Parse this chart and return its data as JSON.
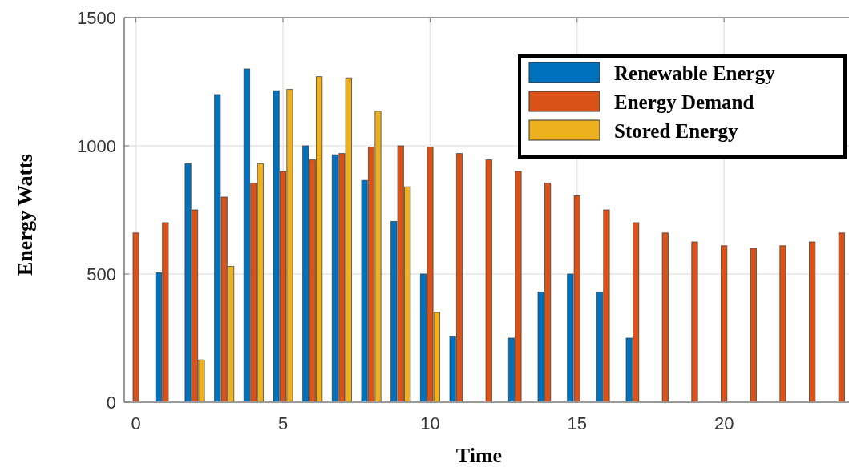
{
  "chart_data": {
    "type": "bar",
    "xlabel": "Time",
    "ylabel": "Energy Watts",
    "x": [
      0,
      1,
      2,
      3,
      4,
      5,
      6,
      7,
      8,
      9,
      10,
      11,
      12,
      13,
      14,
      15,
      16,
      17,
      18,
      19,
      20,
      21,
      22,
      23,
      24
    ],
    "series": [
      {
        "name": "Renewable Energy",
        "color": "#0072bd",
        "values": [
          null,
          505,
          930,
          1200,
          1300,
          1215,
          1000,
          965,
          865,
          705,
          500,
          255,
          null,
          250,
          430,
          500,
          430,
          250,
          null,
          null,
          null,
          null,
          null,
          null,
          null
        ]
      },
      {
        "name": "Energy Demand",
        "color": "#d95319",
        "values": [
          660,
          700,
          750,
          800,
          855,
          900,
          945,
          970,
          995,
          1000,
          995,
          970,
          945,
          900,
          855,
          805,
          750,
          700,
          660,
          625,
          610,
          600,
          610,
          625,
          660
        ]
      },
      {
        "name": "Stored Energy",
        "color": "#edb120",
        "values": [
          null,
          null,
          165,
          530,
          930,
          1220,
          1270,
          1265,
          1135,
          840,
          350,
          null,
          null,
          null,
          null,
          null,
          null,
          null,
          null,
          null,
          null,
          null,
          null,
          null,
          null
        ]
      }
    ],
    "xlim": [
      -0.4,
      24.25
    ],
    "xticks": [
      0,
      5,
      10,
      15,
      20
    ],
    "ylim": [
      0,
      1500
    ],
    "yticks": [
      0,
      500,
      1000,
      1500
    ],
    "grid": true,
    "legend": "top right"
  }
}
